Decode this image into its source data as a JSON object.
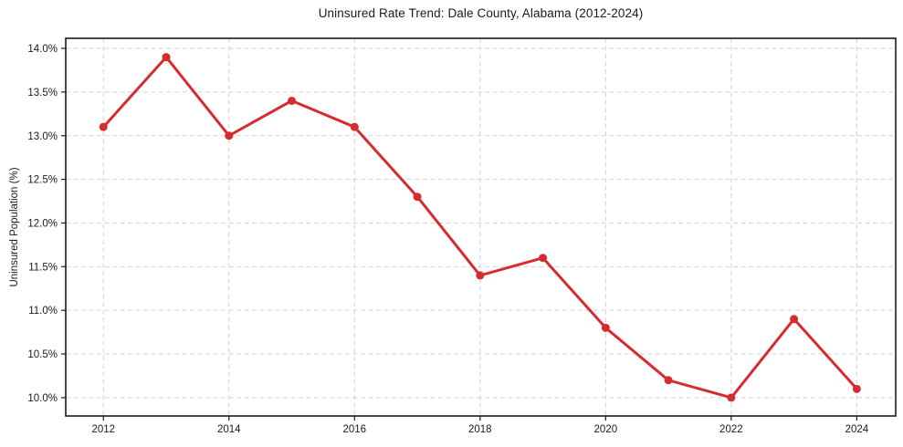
{
  "chart_data": {
    "type": "line",
    "title": "Uninsured Rate Trend: Dale County, Alabama (2012-2024)",
    "xlabel": "",
    "ylabel": "Uninsured Population (%)",
    "x": [
      2012,
      2013,
      2014,
      2015,
      2016,
      2017,
      2018,
      2019,
      2020,
      2021,
      2022,
      2023,
      2024
    ],
    "values": [
      13.1,
      13.9,
      13.0,
      13.4,
      13.1,
      12.3,
      11.4,
      11.6,
      10.8,
      10.2,
      10.0,
      10.9,
      10.1
    ],
    "x_ticks": [
      2012,
      2014,
      2016,
      2018,
      2020,
      2022,
      2024
    ],
    "x_tick_labels": [
      "2012",
      "2014",
      "2016",
      "2018",
      "2020",
      "2022",
      "2024"
    ],
    "y_ticks": [
      10.0,
      10.5,
      11.0,
      11.5,
      12.0,
      12.5,
      13.0,
      13.5,
      14.0
    ],
    "y_tick_labels": [
      "10.0%",
      "10.5%",
      "11.0%",
      "11.5%",
      "12.0%",
      "12.5%",
      "13.0%",
      "13.5%",
      "14.0%"
    ],
    "xlim": [
      2011.4,
      2024.62
    ],
    "ylim": [
      9.79,
      14.115
    ],
    "grid": "dashed, both axes, at labeled ticks only",
    "legend": "none",
    "line_color": "#d62b2f",
    "marker": "circle",
    "marker_color": "#d62b2f",
    "grid_color": "#d2d2d2",
    "axis_color": "#1a1a1a",
    "background_color": "#ffffff"
  }
}
